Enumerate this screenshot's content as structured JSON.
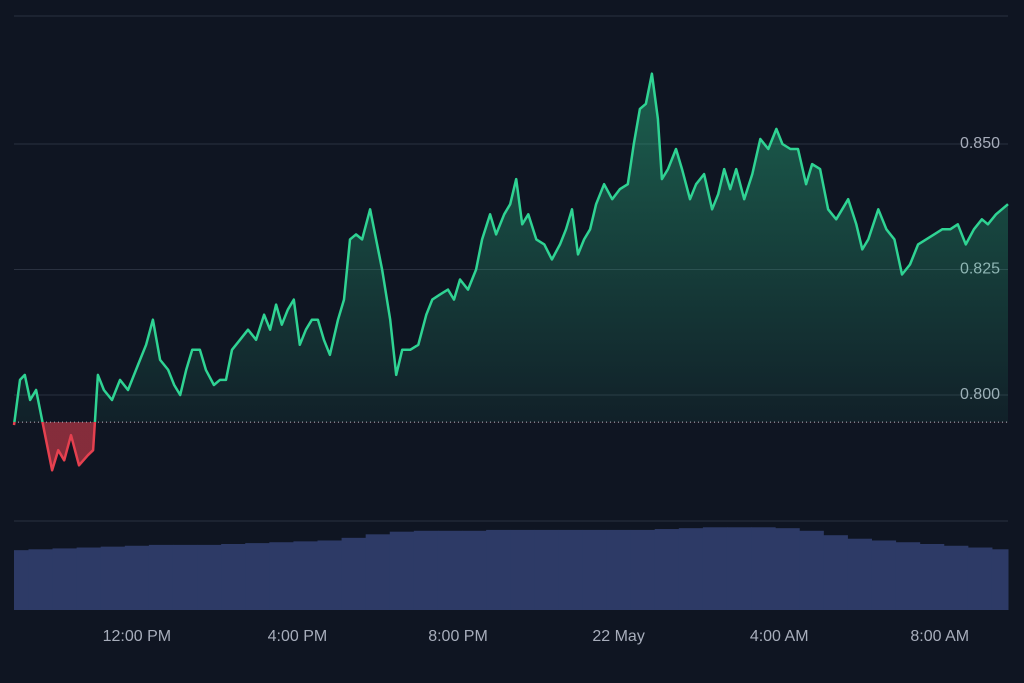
{
  "chart_data": {
    "type": "line",
    "x": [
      8.94,
      9.09,
      9.21,
      9.34,
      9.49,
      9.64,
      9.89,
      10.04,
      10.19,
      10.36,
      10.56,
      10.78,
      10.91,
      11.03,
      11.18,
      11.38,
      11.58,
      11.78,
      12.03,
      12.23,
      12.4,
      12.58,
      12.78,
      12.93,
      13.08,
      13.23,
      13.38,
      13.57,
      13.72,
      13.92,
      14.07,
      14.22,
      14.37,
      14.57,
      14.77,
      14.97,
      15.17,
      15.32,
      15.47,
      15.61,
      15.76,
      15.91,
      16.06,
      16.21,
      16.36,
      16.51,
      16.66,
      16.81,
      17.01,
      17.16,
      17.31,
      17.46,
      17.61,
      17.81,
      17.96,
      18.11,
      18.31,
      18.46,
      18.61,
      18.81,
      19.01,
      19.21,
      19.36,
      19.55,
      19.75,
      19.9,
      20.05,
      20.25,
      20.45,
      20.6,
      20.8,
      20.95,
      21.15,
      21.3,
      21.45,
      21.6,
      21.75,
      21.95,
      22.15,
      22.34,
      22.54,
      22.69,
      22.84,
      22.99,
      23.14,
      23.29,
      23.44,
      23.64,
      23.84,
      24.03,
      24.23,
      24.38,
      24.53,
      24.68,
      24.83,
      24.98,
      25.08,
      25.23,
      25.43,
      25.58,
      25.78,
      25.93,
      26.13,
      26.33,
      26.48,
      26.63,
      26.78,
      26.93,
      27.13,
      27.33,
      27.53,
      27.73,
      27.93,
      28.08,
      28.28,
      28.47,
      28.67,
      28.82,
      29.02,
      29.22,
      29.42,
      29.57,
      29.72,
      29.92,
      30.07,
      30.22,
      30.47,
      30.67,
      30.87,
      31.06,
      31.26,
      31.46,
      31.66,
      31.86,
      32.06,
      32.26,
      32.45,
      32.65,
      32.85,
      33.05,
      33.2,
      33.4,
      33.7
    ],
    "series": [
      {
        "color": "#2fd393",
        "negative_color": "#e5404f",
        "values": [
          0.794,
          0.803,
          0.804,
          0.799,
          0.801,
          0.795,
          0.785,
          0.789,
          0.787,
          0.792,
          0.786,
          0.788,
          0.789,
          0.804,
          0.801,
          0.799,
          0.803,
          0.801,
          0.806,
          0.81,
          0.815,
          0.807,
          0.805,
          0.802,
          0.8,
          0.805,
          0.809,
          0.809,
          0.805,
          0.802,
          0.803,
          0.803,
          0.809,
          0.811,
          0.813,
          0.811,
          0.816,
          0.813,
          0.818,
          0.814,
          0.817,
          0.819,
          0.81,
          0.813,
          0.815,
          0.815,
          0.811,
          0.808,
          0.815,
          0.819,
          0.831,
          0.832,
          0.831,
          0.837,
          0.831,
          0.825,
          0.815,
          0.804,
          0.809,
          0.809,
          0.81,
          0.816,
          0.819,
          0.82,
          0.821,
          0.819,
          0.823,
          0.821,
          0.825,
          0.831,
          0.836,
          0.832,
          0.836,
          0.838,
          0.843,
          0.834,
          0.836,
          0.831,
          0.83,
          0.827,
          0.83,
          0.833,
          0.837,
          0.828,
          0.831,
          0.833,
          0.838,
          0.842,
          0.839,
          0.841,
          0.842,
          0.85,
          0.857,
          0.858,
          0.864,
          0.855,
          0.843,
          0.845,
          0.849,
          0.845,
          0.839,
          0.842,
          0.844,
          0.837,
          0.84,
          0.845,
          0.841,
          0.845,
          0.839,
          0.844,
          0.851,
          0.849,
          0.853,
          0.85,
          0.849,
          0.849,
          0.842,
          0.846,
          0.845,
          0.837,
          0.835,
          0.837,
          0.839,
          0.834,
          0.829,
          0.831,
          0.837,
          0.833,
          0.831,
          0.824,
          0.826,
          0.83,
          0.831,
          0.832,
          0.833,
          0.833,
          0.834,
          0.83,
          0.833,
          0.835,
          0.834,
          0.836,
          0.838
        ]
      }
    ],
    "baseline": 0.7946,
    "xlim": [
      8.94,
      33.7
    ],
    "xticks": [
      {
        "value": 12,
        "label": "12:00 PM"
      },
      {
        "value": 16,
        "label": "4:00 PM"
      },
      {
        "value": 20,
        "label": "8:00 PM"
      },
      {
        "value": 24,
        "label": "22 May"
      },
      {
        "value": 28,
        "label": "4:00 AM"
      },
      {
        "value": 32,
        "label": "8:00 AM"
      }
    ],
    "ylim": [
      0.7751,
      0.8755
    ],
    "yticks": [
      {
        "value": 0.8,
        "label": "0.800"
      },
      {
        "value": 0.825,
        "label": "0.825"
      },
      {
        "value": 0.85,
        "label": "0.850"
      }
    ],
    "grid": true,
    "volume": {
      "color": "#2d3a66",
      "vlim": [
        0,
        100
      ],
      "x": [
        9.0,
        9.6,
        10.2,
        10.8,
        11.4,
        12.0,
        12.6,
        13.2,
        13.8,
        14.4,
        15.0,
        15.6,
        16.2,
        16.8,
        17.4,
        18.0,
        18.6,
        19.2,
        19.8,
        20.4,
        21.0,
        21.6,
        22.2,
        22.8,
        23.4,
        24.0,
        24.6,
        25.2,
        25.8,
        26.4,
        27.0,
        27.6,
        28.2,
        28.8,
        29.4,
        30.0,
        30.6,
        31.2,
        31.8,
        32.4,
        33.0,
        33.6
      ],
      "values": [
        68,
        69,
        70,
        71,
        72,
        73,
        74,
        74,
        74,
        75,
        76,
        77,
        78,
        79,
        82,
        86,
        89,
        90,
        90,
        90,
        91,
        91,
        91,
        91,
        91,
        91,
        91,
        92,
        93,
        94,
        94,
        94,
        93,
        90,
        85,
        81,
        79,
        77,
        75,
        73,
        71,
        69
      ]
    }
  }
}
